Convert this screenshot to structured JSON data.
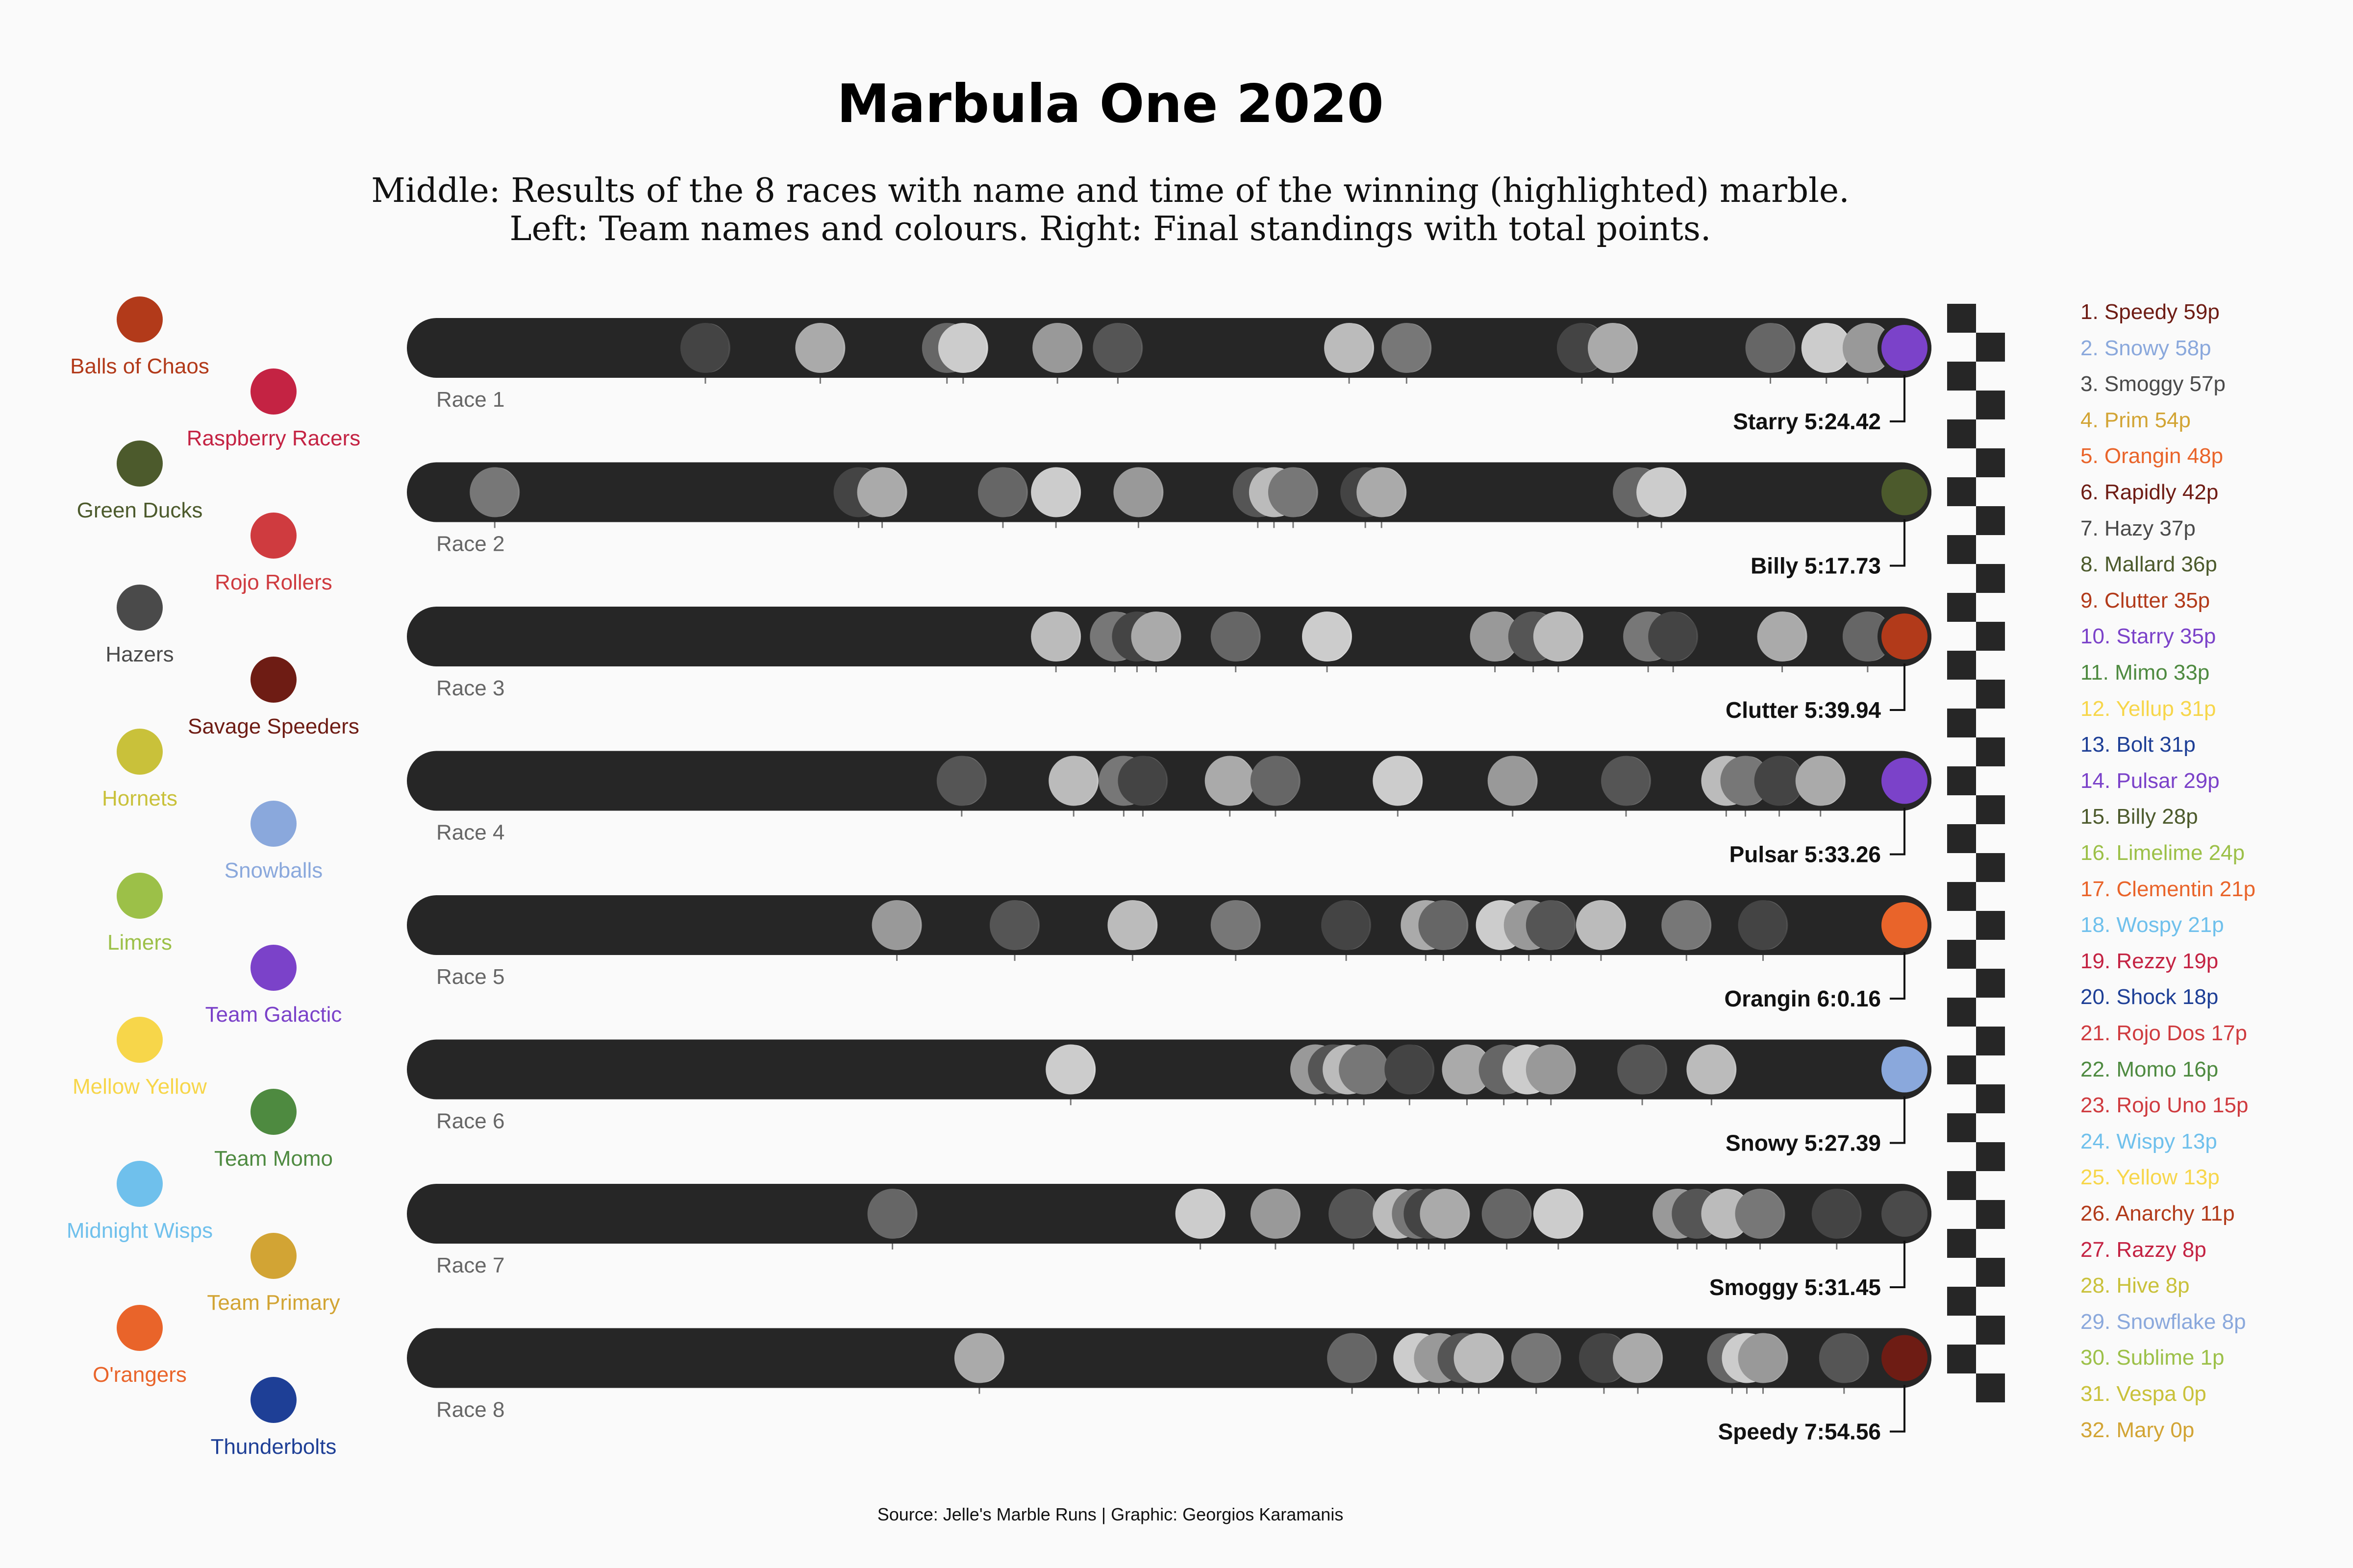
{
  "title": "Marbula One 2020",
  "subtitle_line1": "Middle: Results of the 8 races with name and time of the winning (highlighted) marble.",
  "subtitle_line2": "Left: Team names and colours. Right: Final standings with total points.",
  "source": "Source: Jelle's Marble Runs | Graphic: Georgios Karamanis",
  "teams": [
    {
      "name": "Balls of Chaos",
      "color": "#b23a1a"
    },
    {
      "name": "Raspberry Racers",
      "color": "#c42343"
    },
    {
      "name": "Green Ducks",
      "color": "#4c5a2c"
    },
    {
      "name": "Rojo Rollers",
      "color": "#cf3b3f"
    },
    {
      "name": "Hazers",
      "color": "#4a4a4a"
    },
    {
      "name": "Savage Speeders",
      "color": "#6e1c14"
    },
    {
      "name": "Hornets",
      "color": "#c9c13a"
    },
    {
      "name": "Snowballs",
      "color": "#8aa8dc"
    },
    {
      "name": "Limers",
      "color": "#9cc048"
    },
    {
      "name": "Team Galactic",
      "color": "#7b42c9"
    },
    {
      "name": "Mellow Yellow",
      "color": "#f7d64a"
    },
    {
      "name": "Team Momo",
      "color": "#4e8a40"
    },
    {
      "name": "Midnight Wisps",
      "color": "#6fc0ec"
    },
    {
      "name": "Team Primary",
      "color": "#d2a434"
    },
    {
      "name": "O'rangers",
      "color": "#e9642a"
    },
    {
      "name": "Thunderbolts",
      "color": "#1e3f96"
    }
  ],
  "chart_data": {
    "type": "scatter",
    "x_axis": "finishing position along track (winner at right)",
    "races": [
      {
        "label": "Race 1",
        "winner": "Starry 5:24.42",
        "winner_color": "#7b42c9",
        "marbles": [
          0.186,
          0.264,
          0.35,
          0.361,
          0.425,
          0.466,
          0.623,
          0.662,
          0.781,
          0.802,
          0.909,
          0.947,
          0.975
        ]
      },
      {
        "label": "Race 2",
        "winner": "Billy 5:17.73",
        "winner_color": "#4c5a2c",
        "marbles": [
          0.043,
          0.29,
          0.306,
          0.388,
          0.424,
          0.48,
          0.561,
          0.572,
          0.585,
          0.634,
          0.645,
          0.819,
          0.835
        ]
      },
      {
        "label": "Race 3",
        "winner": "Clutter 5:39.94",
        "winner_color": "#b23a1a",
        "marbles": [
          0.424,
          0.464,
          0.479,
          0.492,
          0.546,
          0.608,
          0.722,
          0.748,
          0.765,
          0.826,
          0.843,
          0.917,
          0.975
        ]
      },
      {
        "label": "Race 4",
        "winner": "Pulsar 5:33.26",
        "winner_color": "#7b42c9",
        "marbles": [
          0.36,
          0.436,
          0.47,
          0.483,
          0.542,
          0.573,
          0.656,
          0.734,
          0.811,
          0.879,
          0.892,
          0.915,
          0.943
        ]
      },
      {
        "label": "Race 5",
        "winner": "Orangin 6:0.16",
        "winner_color": "#e9642a",
        "marbles": [
          0.316,
          0.396,
          0.476,
          0.546,
          0.621,
          0.675,
          0.687,
          0.726,
          0.745,
          0.76,
          0.794,
          0.852,
          0.904
        ]
      },
      {
        "label": "Race 6",
        "winner": "Snowy 5:27.39",
        "winner_color": "#8aa8dc",
        "marbles": [
          0.434,
          0.6,
          0.612,
          0.622,
          0.633,
          0.664,
          0.703,
          0.728,
          0.744,
          0.76,
          0.822,
          0.869
        ]
      },
      {
        "label": "Race 7",
        "winner": "Smoggy 5:31.45",
        "winner_color": "#4a4a4a",
        "marbles": [
          0.313,
          0.522,
          0.573,
          0.626,
          0.656,
          0.669,
          0.677,
          0.688,
          0.73,
          0.765,
          0.846,
          0.859,
          0.879,
          0.902,
          0.954
        ]
      },
      {
        "label": "Race 8",
        "winner": "Speedy 7:54.56",
        "winner_color": "#6e1c14",
        "marbles": [
          0.372,
          0.625,
          0.67,
          0.684,
          0.7,
          0.711,
          0.75,
          0.796,
          0.819,
          0.883,
          0.893,
          0.904,
          0.959
        ]
      }
    ]
  },
  "standings": [
    {
      "text": "1. Speedy 59p",
      "color": "#6e1c14"
    },
    {
      "text": "2. Snowy 58p",
      "color": "#8aa8dc"
    },
    {
      "text": "3. Smoggy 57p",
      "color": "#4a4a4a"
    },
    {
      "text": "4. Prim 54p",
      "color": "#d2a434"
    },
    {
      "text": "5. Orangin 48p",
      "color": "#e9642a"
    },
    {
      "text": "6. Rapidly 42p",
      "color": "#6e1c14"
    },
    {
      "text": "7. Hazy 37p",
      "color": "#4a4a4a"
    },
    {
      "text": "8. Mallard 36p",
      "color": "#4c5a2c"
    },
    {
      "text": "9. Clutter 35p",
      "color": "#b23a1a"
    },
    {
      "text": "10. Starry 35p",
      "color": "#7b42c9"
    },
    {
      "text": "11. Mimo 33p",
      "color": "#4e8a40"
    },
    {
      "text": "12. Yellup 31p",
      "color": "#f7d64a"
    },
    {
      "text": "13. Bolt 31p",
      "color": "#1e3f96"
    },
    {
      "text": "14. Pulsar 29p",
      "color": "#7b42c9"
    },
    {
      "text": "15. Billy 28p",
      "color": "#4c5a2c"
    },
    {
      "text": "16. Limelime 24p",
      "color": "#9cc048"
    },
    {
      "text": "17. Clementin 21p",
      "color": "#e9642a"
    },
    {
      "text": "18. Wospy 21p",
      "color": "#6fc0ec"
    },
    {
      "text": "19. Rezzy 19p",
      "color": "#c42343"
    },
    {
      "text": "20. Shock 18p",
      "color": "#1e3f96"
    },
    {
      "text": "21. Rojo Dos 17p",
      "color": "#cf3b3f"
    },
    {
      "text": "22. Momo 16p",
      "color": "#4e8a40"
    },
    {
      "text": "23. Rojo Uno 15p",
      "color": "#cf3b3f"
    },
    {
      "text": "24. Wispy 13p",
      "color": "#6fc0ec"
    },
    {
      "text": "25. Yellow 13p",
      "color": "#f7d64a"
    },
    {
      "text": "26. Anarchy 11p",
      "color": "#b23a1a"
    },
    {
      "text": "27. Razzy 8p",
      "color": "#c42343"
    },
    {
      "text": "28. Hive 8p",
      "color": "#c9c13a"
    },
    {
      "text": "29. Snowflake 8p",
      "color": "#8aa8dc"
    },
    {
      "text": "30. Sublime 1p",
      "color": "#9cc048"
    },
    {
      "text": "31. Vespa 0p",
      "color": "#c9c13a"
    },
    {
      "text": "32. Mary 0p",
      "color": "#d2a434"
    }
  ]
}
